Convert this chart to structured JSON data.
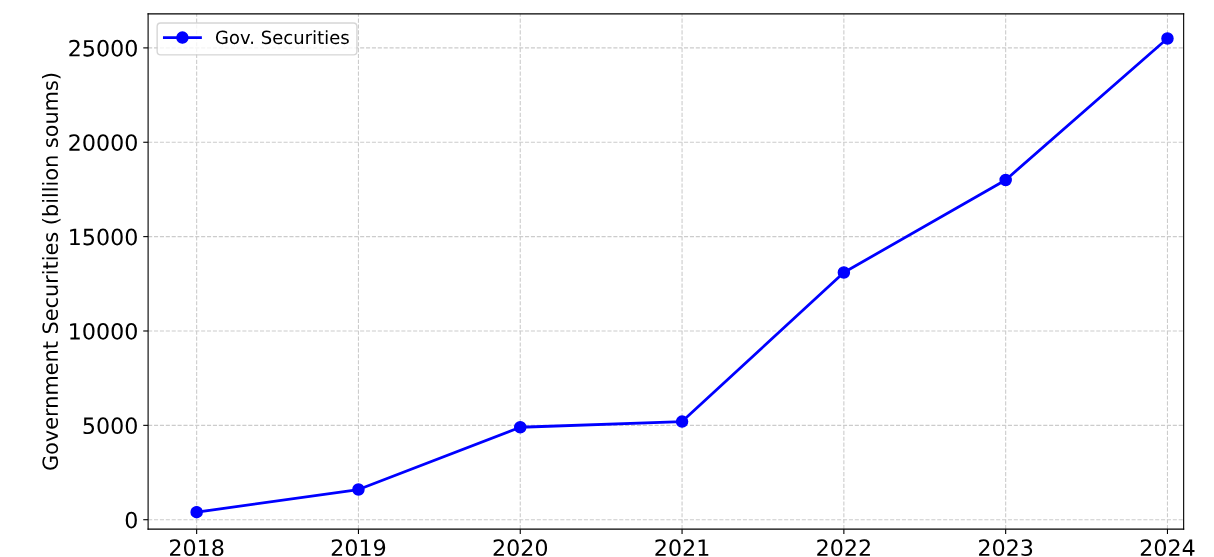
{
  "chart_data": {
    "type": "line",
    "ylabel": "Government Securities (billion soums)",
    "x": [
      2018,
      2019,
      2020,
      2021,
      2022,
      2023,
      2024
    ],
    "series": [
      {
        "name": "Gov. Securities",
        "color": "#0000ff",
        "values": [
          400,
          1600,
          4900,
          5200,
          13100,
          18000,
          25500
        ]
      }
    ],
    "xlim": [
      2017.7,
      2024.1
    ],
    "xticks": [
      2018,
      2019,
      2020,
      2021,
      2022,
      2023,
      2024
    ],
    "ylim": [
      -500,
      26800
    ],
    "yticks": [
      0,
      5000,
      10000,
      15000,
      20000,
      25000
    ],
    "grid": true,
    "legend": "top left",
    "marker": "circle",
    "line_style": "solid"
  }
}
